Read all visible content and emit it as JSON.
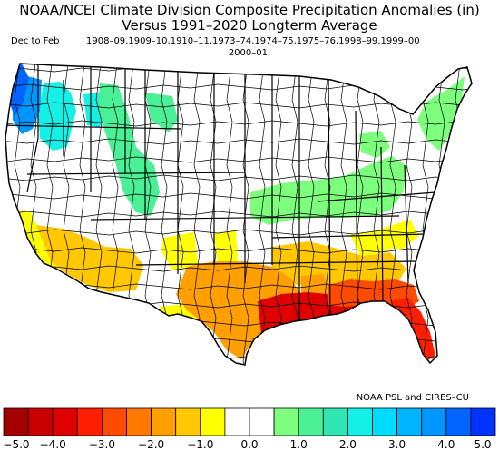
{
  "title": {
    "line1": "NOAA/NCEI Climate Division Composite Precipitation Anomalies (in)",
    "line2": "Versus 1991–2020 Longterm Average"
  },
  "subtitle": {
    "season": "Dec to Feb",
    "years_line1": "1908–09,1909–10,1910–11,1973–74,1974–75,1975–76,1998–99,1999–00",
    "years_line2": "2000–01,"
  },
  "credit": "NOAA PSL and CIRES–CU",
  "colorbar": {
    "tick_labels": [
      "−5.0",
      "−4.0",
      "−3.0",
      "−2.0",
      "−1.0",
      "0.0",
      "1.0",
      "2.0",
      "3.0",
      "4.0",
      "5.0"
    ],
    "bins": [
      {
        "lo": -5.0,
        "hi": -4.5,
        "color": "#a50000"
      },
      {
        "lo": -4.5,
        "hi": -4.0,
        "color": "#c80000"
      },
      {
        "lo": -4.0,
        "hi": -3.5,
        "color": "#e10000"
      },
      {
        "lo": -3.5,
        "hi": -3.0,
        "color": "#ff1e00"
      },
      {
        "lo": -3.0,
        "hi": -2.5,
        "color": "#ff4b00"
      },
      {
        "lo": -2.5,
        "hi": -2.0,
        "color": "#ff7800"
      },
      {
        "lo": -2.0,
        "hi": -1.5,
        "color": "#ffa000"
      },
      {
        "lo": -1.5,
        "hi": -1.0,
        "color": "#ffc800"
      },
      {
        "lo": -1.0,
        "hi": -0.5,
        "color": "#ffff00"
      },
      {
        "lo": -0.5,
        "hi": 0.0,
        "color": "#ffffff"
      },
      {
        "lo": 0.0,
        "hi": 0.5,
        "color": "#ffffff"
      },
      {
        "lo": 0.5,
        "hi": 1.0,
        "color": "#7dff7d"
      },
      {
        "lo": 1.0,
        "hi": 1.5,
        "color": "#4bf096"
      },
      {
        "lo": 1.5,
        "hi": 2.0,
        "color": "#32e6b4"
      },
      {
        "lo": 2.0,
        "hi": 2.5,
        "color": "#14f0e6"
      },
      {
        "lo": 2.5,
        "hi": 3.0,
        "color": "#00dcff"
      },
      {
        "lo": 3.0,
        "hi": 3.5,
        "color": "#00b4ff"
      },
      {
        "lo": 3.5,
        "hi": 4.0,
        "color": "#0096ff"
      },
      {
        "lo": 4.0,
        "hi": 4.5,
        "color": "#0064ff"
      },
      {
        "lo": 4.5,
        "hi": 5.0,
        "color": "#0032ff"
      }
    ]
  },
  "map": {
    "land_color": "#ffffff",
    "boundary_color": "#000000",
    "anomaly_regions": [
      {
        "name": "pacific-northwest-coast",
        "anomaly": 4.5,
        "color": "#0064ff"
      },
      {
        "name": "western-washington",
        "anomaly": 3.5,
        "color": "#0096ff"
      },
      {
        "name": "inland-northwest",
        "anomaly": 2.2,
        "color": "#14f0e6"
      },
      {
        "name": "idaho-montana",
        "anomaly": 1.2,
        "color": "#4bf096"
      },
      {
        "name": "great-lakes-ohio-valley",
        "anomaly": 0.7,
        "color": "#7dff7d"
      },
      {
        "name": "new-england",
        "anomaly": 0.7,
        "color": "#7dff7d"
      },
      {
        "name": "southern-california",
        "anomaly": -0.8,
        "color": "#ffff00"
      },
      {
        "name": "desert-southwest",
        "anomaly": -1.2,
        "color": "#ffc800"
      },
      {
        "name": "texas-oklahoma",
        "anomaly": -1.8,
        "color": "#ffa000"
      },
      {
        "name": "gulf-coast",
        "anomaly": -3.7,
        "color": "#e10000"
      },
      {
        "name": "southeast",
        "anomaly": -2.7,
        "color": "#ff4b00"
      },
      {
        "name": "florida",
        "anomaly": -3.2,
        "color": "#ff1e00"
      }
    ]
  }
}
